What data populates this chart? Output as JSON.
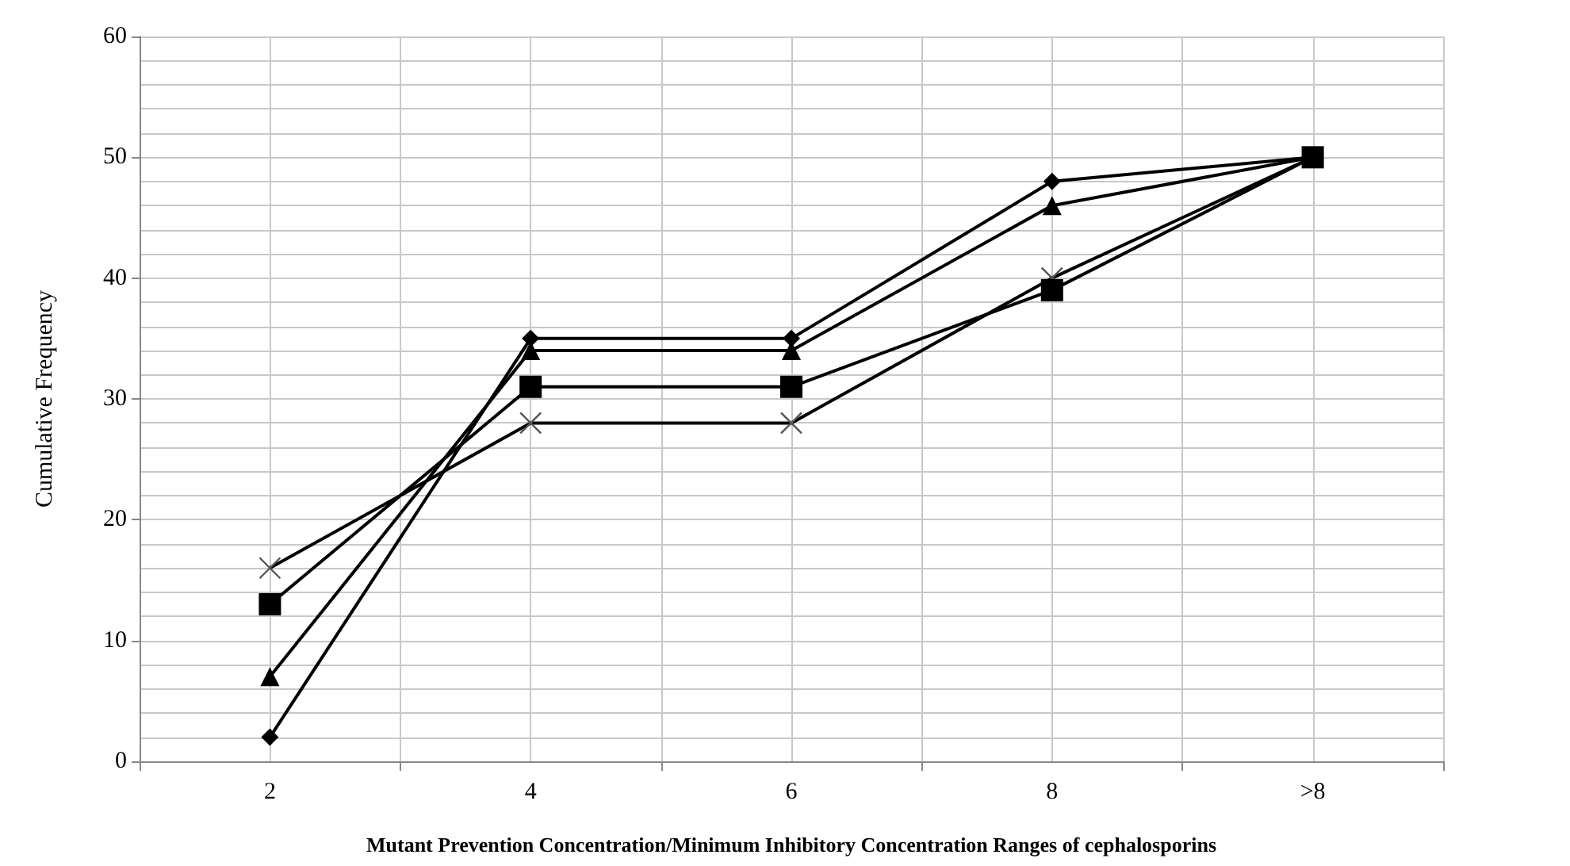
{
  "chart_data": {
    "type": "line",
    "xlabel": "Mutant Prevention Concentration/Minimum Inhibitory Concentration Ranges of cephalosporins",
    "ylabel": "Cumulative Frequency",
    "categories": [
      "2",
      "4",
      "6",
      "8",
      ">8"
    ],
    "series": [
      {
        "color": "#000000",
        "marker": "diamond",
        "values": [
          2,
          35,
          35,
          48,
          50
        ]
      },
      {
        "color": "#000000",
        "marker": "triangle",
        "values": [
          7,
          34,
          34,
          46,
          50
        ]
      },
      {
        "color": "#000000",
        "marker": "cross",
        "values": [
          16,
          28,
          28,
          40,
          50
        ]
      },
      {
        "color": "#000000",
        "marker": "square",
        "values": [
          13,
          31,
          31,
          39,
          50
        ]
      }
    ],
    "ylim": [
      0,
      60
    ],
    "yticks": [
      0,
      10,
      20,
      30,
      40,
      50,
      60
    ],
    "grid": true,
    "line_style": "solid"
  }
}
